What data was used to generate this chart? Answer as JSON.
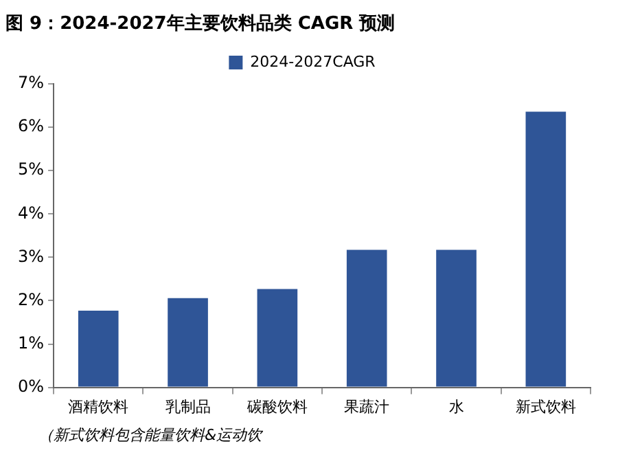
{
  "chart_data": {
    "type": "bar",
    "title": "图 9：2024-2027年主要饮料品类 CAGR 预测",
    "categories": [
      "酒精饮料",
      "乳制品",
      "碳酸饮料",
      "果蔬汁",
      "水",
      "新式饮料"
    ],
    "series": [
      {
        "name": "2024-2027CAGR",
        "color": "#2f5597",
        "values": [
          1.77,
          2.06,
          2.27,
          3.17,
          3.17,
          6.36
        ]
      }
    ],
    "ylim": [
      0,
      7
    ],
    "yticks": [
      {
        "value": 0,
        "label": "0%"
      },
      {
        "value": 1,
        "label": "1%"
      },
      {
        "value": 2,
        "label": "2%"
      },
      {
        "value": 3,
        "label": "3%"
      },
      {
        "value": 4,
        "label": "4%"
      },
      {
        "value": 5,
        "label": "5%"
      },
      {
        "value": 6,
        "label": "6%"
      },
      {
        "value": 7,
        "label": "7%"
      }
    ],
    "grid": false,
    "legend": "top",
    "annotations": [
      "（新式饮料包含能量饮料&运动饮"
    ]
  }
}
